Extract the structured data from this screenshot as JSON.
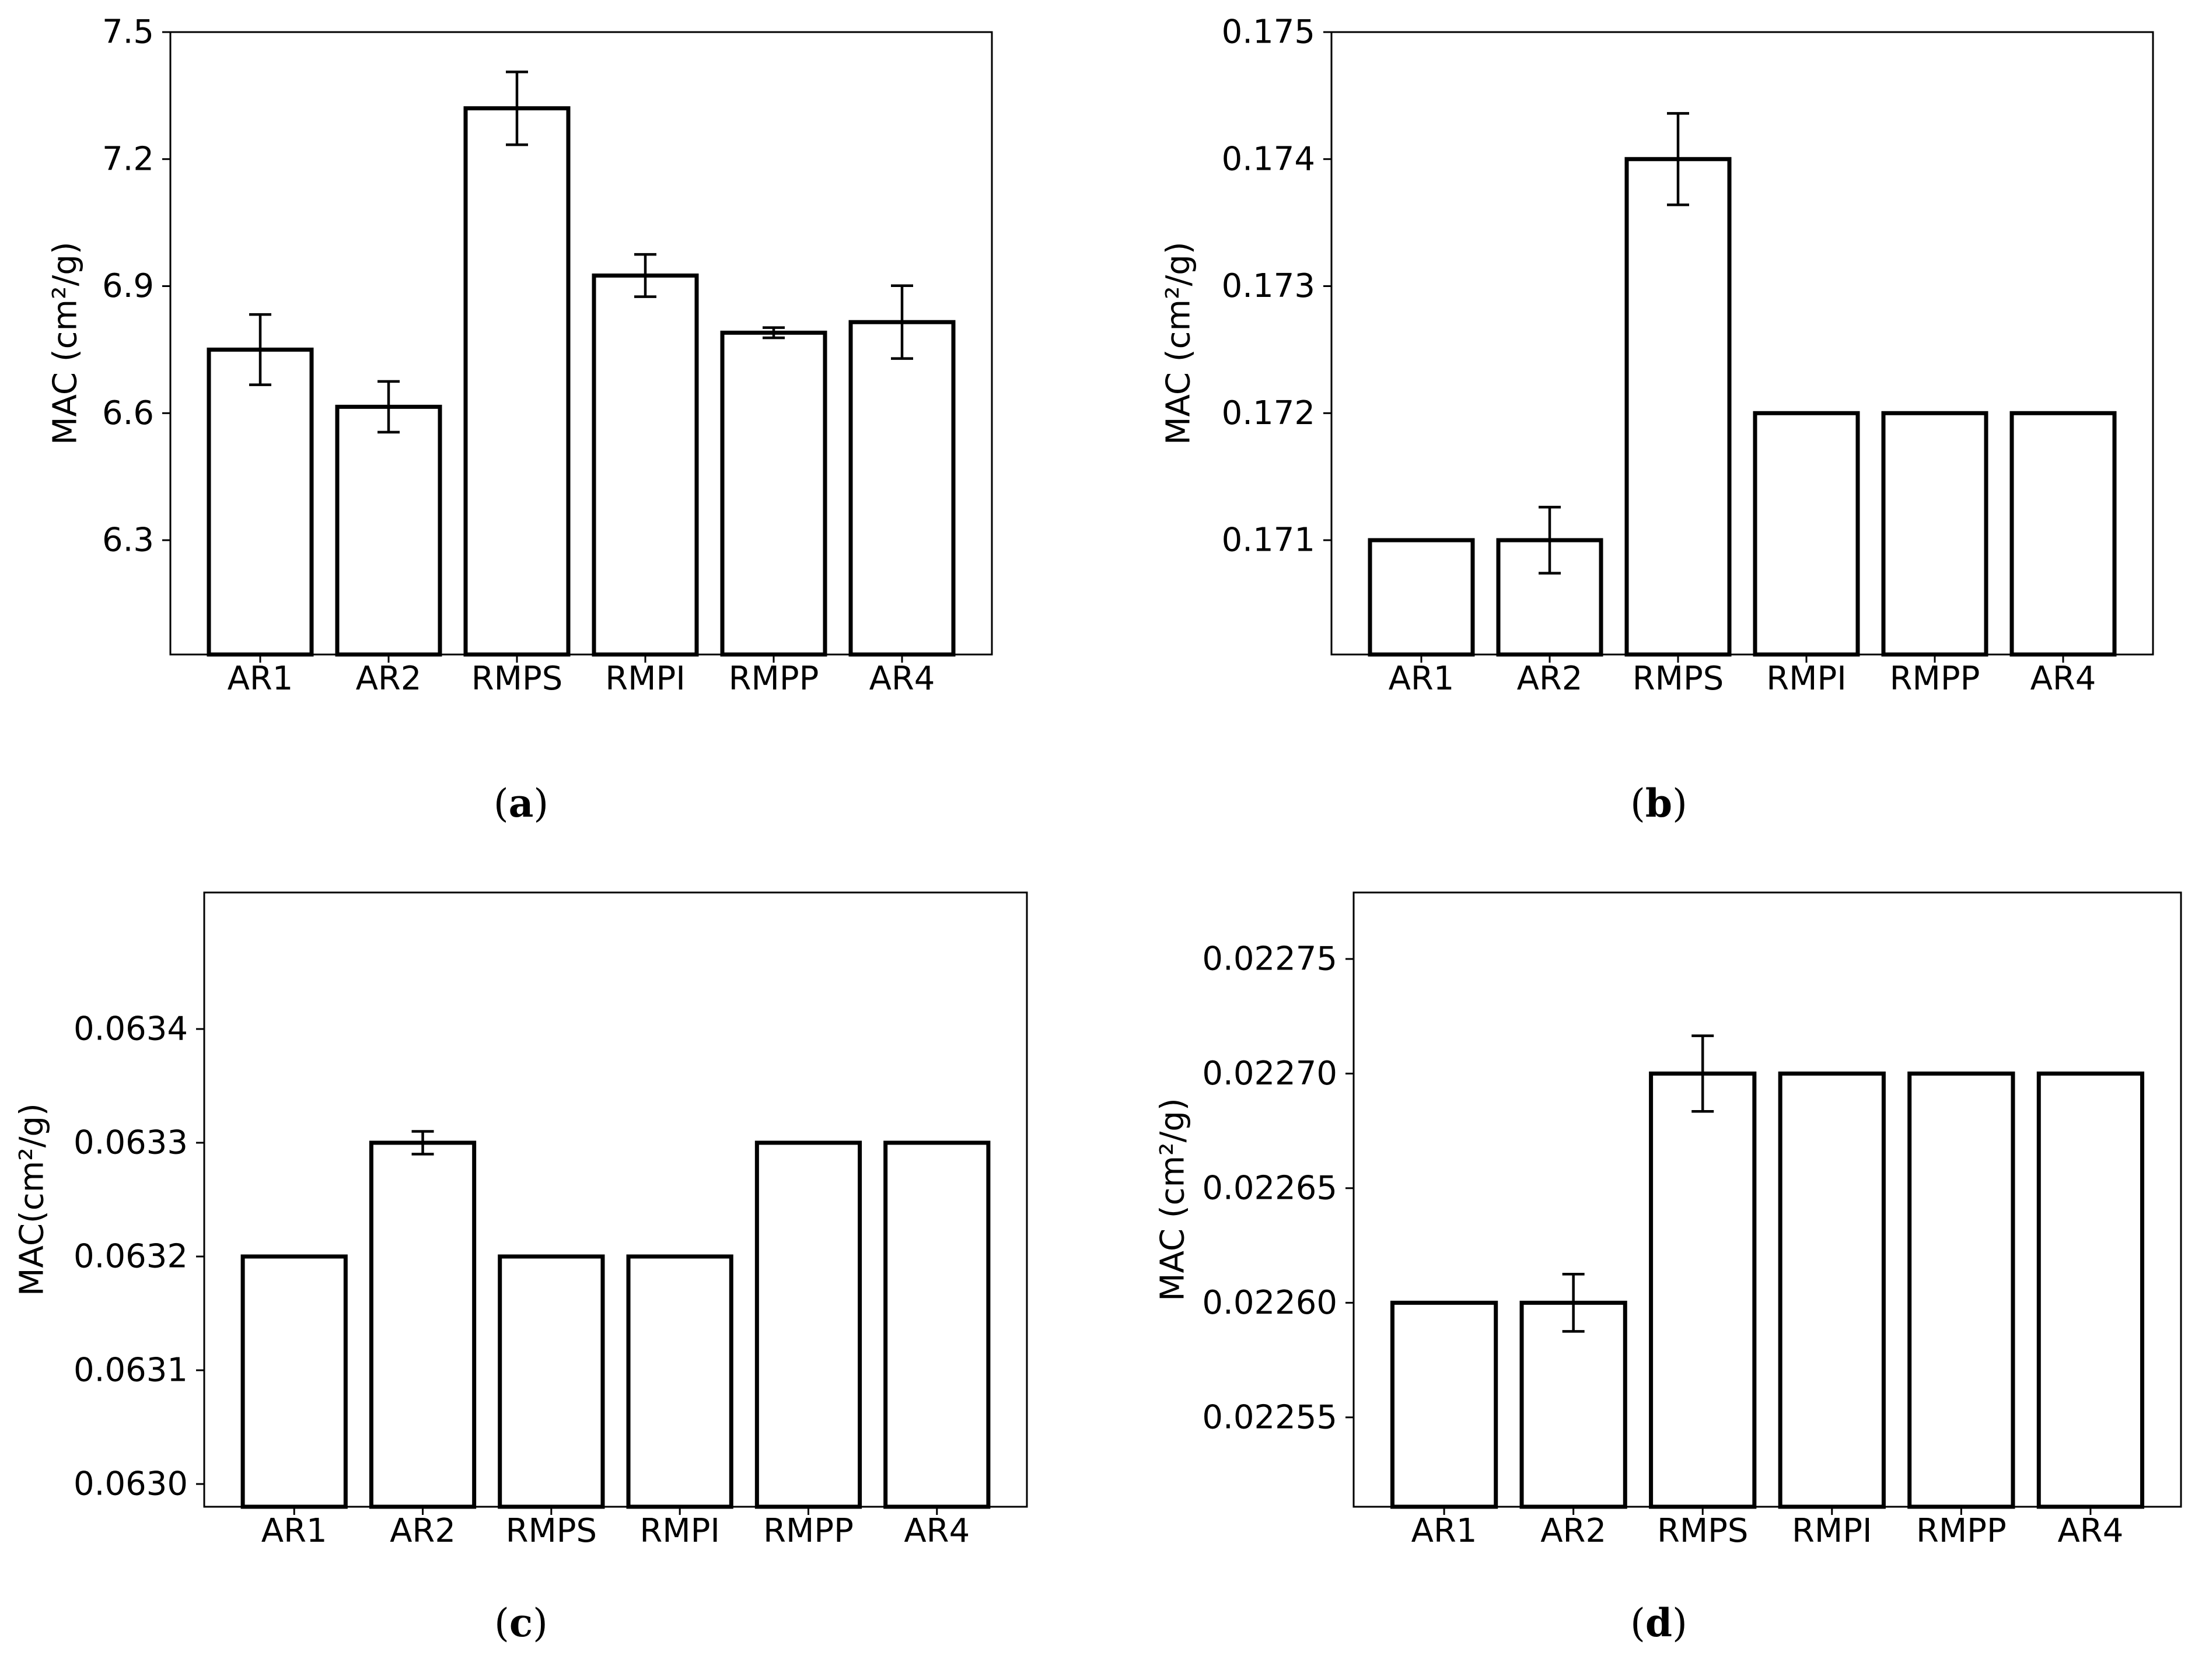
{
  "figure": {
    "layout": "2x2 grid of bar charts with error bars"
  },
  "chart_data": [
    {
      "type": "bar",
      "panel": "a",
      "caption": "a",
      "title": "",
      "xlabel": "",
      "ylabel": "MAC (cm²/g)",
      "ylim": [
        6.03,
        7.5
      ],
      "yticks": [
        6.3,
        6.6,
        6.9,
        7.2,
        7.5
      ],
      "ytick_labels": [
        "6.3",
        "6.6",
        "6.9",
        "7.2",
        "7.5"
      ],
      "categories": [
        "AR1",
        "AR2",
        "RMPS",
        "RMPI",
        "RMPP",
        "AR4"
      ],
      "values": [
        6.75,
        6.615,
        7.32,
        6.925,
        6.79,
        6.815
      ],
      "errors": [
        0.083,
        0.06,
        0.086,
        0.05,
        0.012,
        0.086
      ]
    },
    {
      "type": "bar",
      "panel": "b",
      "caption": "b",
      "title": "",
      "xlabel": "",
      "ylabel": "MAC (cm²/g)",
      "ylim": [
        0.1701,
        0.175
      ],
      "yticks": [
        0.171,
        0.172,
        0.173,
        0.174,
        0.175
      ],
      "ytick_labels": [
        "0.171",
        "0.172",
        "0.173",
        "0.174",
        "0.175"
      ],
      "categories": [
        "AR1",
        "AR2",
        "RMPS",
        "RMPI",
        "RMPP",
        "AR4"
      ],
      "values": [
        0.171,
        0.171,
        0.174,
        0.172,
        0.172,
        0.172
      ],
      "errors": [
        0,
        0.00026,
        0.00036,
        0,
        0,
        0
      ]
    },
    {
      "type": "bar",
      "panel": "c",
      "caption": "c",
      "title": "",
      "xlabel": "",
      "ylabel": "MAC(cm²/g)",
      "ylim": [
        0.06298,
        0.06352
      ],
      "yticks": [
        0.063,
        0.0631,
        0.0632,
        0.0633,
        0.0634
      ],
      "ytick_labels": [
        "0.0630",
        "0.0631",
        "0.0632",
        "0.0633",
        "0.0634"
      ],
      "categories": [
        "AR1",
        "AR2",
        "RMPS",
        "RMPI",
        "RMPP",
        "AR4"
      ],
      "values": [
        0.0632,
        0.0633,
        0.0632,
        0.0632,
        0.0633,
        0.0633
      ],
      "errors": [
        0,
        1e-05,
        0,
        0,
        0,
        0
      ]
    },
    {
      "type": "bar",
      "panel": "d",
      "caption": "d",
      "title": "",
      "xlabel": "",
      "ylabel": "MAC (cm²/g)",
      "ylim": [
        0.022511,
        0.022779
      ],
      "yticks": [
        0.02255,
        0.0226,
        0.02265,
        0.0227,
        0.02275
      ],
      "ytick_labels": [
        "0.02255",
        "0.02260",
        "0.02265",
        "0.02270",
        "0.02275"
      ],
      "categories": [
        "AR1",
        "AR2",
        "RMPS",
        "RMPI",
        "RMPP",
        "AR4"
      ],
      "values": [
        0.0226,
        0.0226,
        0.0227,
        0.0227,
        0.0227,
        0.0227
      ],
      "errors": [
        0,
        1.25e-05,
        1.65e-05,
        0,
        0,
        0
      ]
    }
  ]
}
